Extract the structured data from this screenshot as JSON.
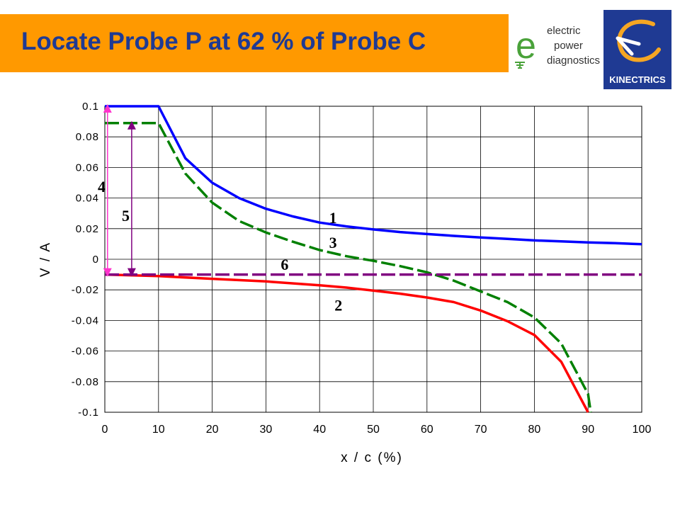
{
  "header": {
    "title": "Locate Probe P at 62 % of Probe C",
    "accent_color": "#ff9900",
    "title_color": "#1f3a93"
  },
  "logos": {
    "epd": {
      "icon": "epd-logo",
      "big_letter": "e",
      "lines": [
        "electric",
        "power",
        "diagnostics"
      ]
    },
    "kinectrics": {
      "icon": "kinectrics-logo",
      "name": "KINECTRICS"
    }
  },
  "chart_data": {
    "type": "line",
    "xlabel": "x / c (%)",
    "ylabel": "V / A",
    "xlim": [
      0,
      100
    ],
    "ylim": [
      -0.1,
      0.1
    ],
    "x_ticks": [
      0,
      10,
      20,
      30,
      40,
      50,
      60,
      70,
      80,
      90,
      100
    ],
    "y_ticks": [
      0.1,
      0.08,
      0.06,
      0.04,
      0.02,
      0,
      -0.02,
      -0.04,
      -0.06,
      -0.08,
      -0.1
    ],
    "x_tick_labels": [
      "0",
      "10",
      "20",
      "30",
      "40",
      "50",
      "60",
      "70",
      "80",
      "90",
      "100"
    ],
    "y_tick_labels": [
      "0.1",
      "0.08",
      "0.06",
      "0.04",
      "0.02",
      "0",
      "-0.02",
      "-0.04",
      "-0.06",
      "-0.08",
      "-0.1"
    ],
    "grid": true,
    "series": [
      {
        "name": "1",
        "color": "#0000ff",
        "style": "solid",
        "x": [
          0,
          10,
          15,
          20,
          25,
          30,
          35,
          40,
          45,
          50,
          55,
          60,
          65,
          70,
          75,
          80,
          85,
          90,
          95,
          100
        ],
        "y": [
          0.1,
          0.1,
          0.066,
          0.05,
          0.04,
          0.033,
          0.028,
          0.024,
          0.0215,
          0.0195,
          0.0178,
          0.0165,
          0.0153,
          0.0142,
          0.0133,
          0.0123,
          0.0117,
          0.011,
          0.0105,
          0.0098
        ]
      },
      {
        "name": "2",
        "color": "#ff0000",
        "style": "solid",
        "x": [
          0,
          10,
          20,
          30,
          40,
          45,
          50,
          55,
          60,
          65,
          70,
          75,
          80,
          85,
          90
        ],
        "y": [
          -0.01,
          -0.011,
          -0.0128,
          -0.0145,
          -0.017,
          -0.0185,
          -0.0205,
          -0.0225,
          -0.025,
          -0.028,
          -0.0335,
          -0.0405,
          -0.0495,
          -0.067,
          -0.1
        ]
      },
      {
        "name": "3",
        "color": "#008000",
        "style": "dashed",
        "x": [
          0,
          10,
          15,
          20,
          25,
          30,
          35,
          40,
          45,
          50,
          55,
          60,
          65,
          70,
          75,
          80,
          85,
          90,
          90.5
        ],
        "y": [
          0.089,
          0.089,
          0.056,
          0.037,
          0.025,
          0.0175,
          0.0115,
          0.006,
          0.002,
          -0.001,
          -0.0045,
          -0.0085,
          -0.014,
          -0.021,
          -0.028,
          -0.038,
          -0.055,
          -0.088,
          -0.1
        ]
      },
      {
        "name": "6",
        "color": "#800080",
        "style": "dashed",
        "x": [
          0,
          100
        ],
        "y": [
          -0.01,
          -0.01
        ]
      }
    ],
    "annotations": [
      {
        "text": "1",
        "x": 42.5,
        "y": 0.0235
      },
      {
        "text": "3",
        "x": 42.5,
        "y": 0.0075
      },
      {
        "text": "6",
        "x": 33.5,
        "y": -0.007
      },
      {
        "text": "2",
        "x": 43.5,
        "y": -0.0335
      },
      {
        "text": "4",
        "x": -0.6,
        "y": 0.044
      },
      {
        "text": "5",
        "x": 3.9,
        "y": 0.025
      }
    ],
    "arrows": [
      {
        "name": "4",
        "color": "#ff33cc",
        "x": 0.5,
        "y_from": 0.1,
        "y_to": -0.01
      },
      {
        "name": "5",
        "color": "#800080",
        "x": 5,
        "y_from": 0.089,
        "y_to": -0.01
      }
    ]
  }
}
